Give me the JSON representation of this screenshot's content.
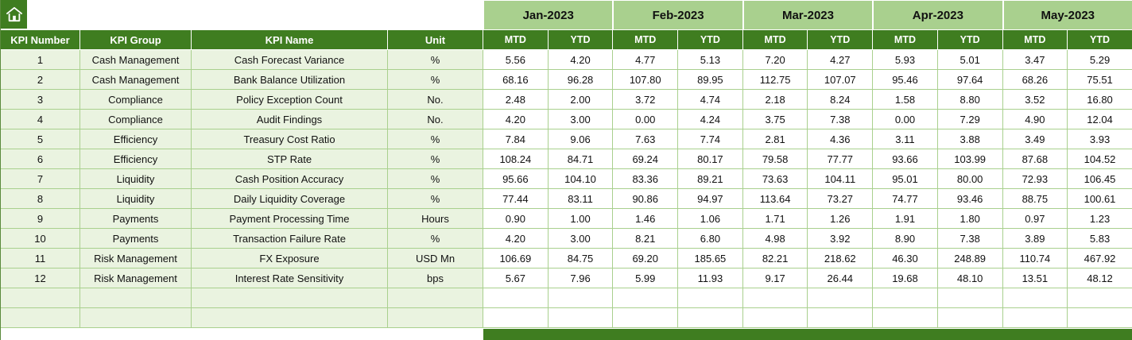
{
  "colors": {
    "dark_green": "#3f7d20",
    "light_green": "#a9d08e",
    "left_tint": "#eaf3e0",
    "grid_line": "#a9d08e",
    "border_outer": "#5a8a3c"
  },
  "months": [
    "Jan-2023",
    "Feb-2023",
    "Mar-2023",
    "Apr-2023",
    "May-2023"
  ],
  "sub_headers": [
    "MTD",
    "YTD"
  ],
  "left_headers": [
    "KPI Number",
    "KPI Group",
    "KPI Name",
    "Unit"
  ],
  "empty_row_count": 2,
  "rows": [
    {
      "number": "1",
      "group": "Cash Management",
      "name": "Cash Forecast Variance",
      "unit": "%",
      "values": [
        "5.56",
        "4.20",
        "4.77",
        "5.13",
        "7.20",
        "4.27",
        "5.93",
        "5.01",
        "3.47",
        "5.29"
      ]
    },
    {
      "number": "2",
      "group": "Cash Management",
      "name": "Bank Balance Utilization",
      "unit": "%",
      "values": [
        "68.16",
        "96.28",
        "107.80",
        "89.95",
        "112.75",
        "107.07",
        "95.46",
        "97.64",
        "68.26",
        "75.51"
      ]
    },
    {
      "number": "3",
      "group": "Compliance",
      "name": "Policy Exception Count",
      "unit": "No.",
      "values": [
        "2.48",
        "2.00",
        "3.72",
        "4.74",
        "2.18",
        "8.24",
        "1.58",
        "8.80",
        "3.52",
        "16.80"
      ]
    },
    {
      "number": "4",
      "group": "Compliance",
      "name": "Audit Findings",
      "unit": "No.",
      "values": [
        "4.20",
        "3.00",
        "0.00",
        "4.24",
        "3.75",
        "7.38",
        "0.00",
        "7.29",
        "4.90",
        "12.04"
      ]
    },
    {
      "number": "5",
      "group": "Efficiency",
      "name": "Treasury Cost Ratio",
      "unit": "%",
      "values": [
        "7.84",
        "9.06",
        "7.63",
        "7.74",
        "2.81",
        "4.36",
        "3.11",
        "3.88",
        "3.49",
        "3.93"
      ]
    },
    {
      "number": "6",
      "group": "Efficiency",
      "name": "STP Rate",
      "unit": "%",
      "values": [
        "108.24",
        "84.71",
        "69.24",
        "80.17",
        "79.58",
        "77.77",
        "93.66",
        "103.99",
        "87.68",
        "104.52"
      ]
    },
    {
      "number": "7",
      "group": "Liquidity",
      "name": "Cash Position Accuracy",
      "unit": "%",
      "values": [
        "95.66",
        "104.10",
        "83.36",
        "89.21",
        "73.63",
        "104.11",
        "95.01",
        "80.00",
        "72.93",
        "106.45"
      ]
    },
    {
      "number": "8",
      "group": "Liquidity",
      "name": "Daily Liquidity Coverage",
      "unit": "%",
      "values": [
        "77.44",
        "83.11",
        "90.86",
        "94.97",
        "113.64",
        "73.27",
        "74.77",
        "93.46",
        "88.75",
        "100.61"
      ]
    },
    {
      "number": "9",
      "group": "Payments",
      "name": "Payment Processing Time",
      "unit": "Hours",
      "values": [
        "0.90",
        "1.00",
        "1.46",
        "1.06",
        "1.71",
        "1.26",
        "1.91",
        "1.80",
        "0.97",
        "1.23"
      ]
    },
    {
      "number": "10",
      "group": "Payments",
      "name": "Transaction Failure Rate",
      "unit": "%",
      "values": [
        "4.20",
        "3.00",
        "8.21",
        "6.80",
        "4.98",
        "3.92",
        "8.90",
        "7.38",
        "3.89",
        "5.83"
      ]
    },
    {
      "number": "11",
      "group": "Risk Management",
      "name": "FX Exposure",
      "unit": "USD Mn",
      "values": [
        "106.69",
        "84.75",
        "69.20",
        "185.65",
        "82.21",
        "218.62",
        "46.30",
        "248.89",
        "110.74",
        "467.92"
      ]
    },
    {
      "number": "12",
      "group": "Risk Management",
      "name": "Interest Rate Sensitivity",
      "unit": "bps",
      "values": [
        "5.67",
        "7.96",
        "5.99",
        "11.93",
        "9.17",
        "26.44",
        "19.68",
        "48.10",
        "13.51",
        "48.12"
      ]
    }
  ]
}
